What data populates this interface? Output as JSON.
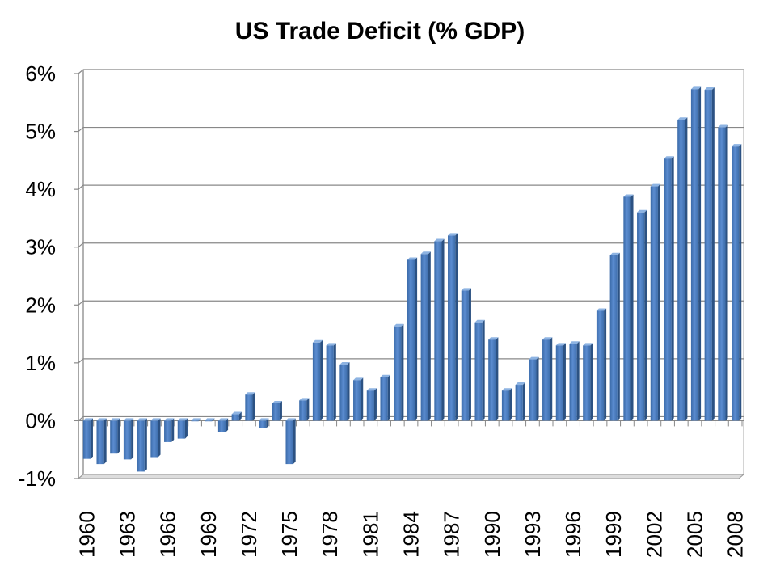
{
  "chart_data": {
    "type": "bar",
    "title": "US Trade Deficit (% GDP)",
    "xlabel": "",
    "ylabel": "",
    "ylim": [
      -1,
      6
    ],
    "yticks": [
      "-1%",
      "0%",
      "1%",
      "2%",
      "3%",
      "4%",
      "5%",
      "6%"
    ],
    "grid": true,
    "legend": "none",
    "bar_color": "#4F81BD",
    "categories": [
      "1960",
      "1961",
      "1962",
      "1963",
      "1964",
      "1965",
      "1966",
      "1967",
      "1968",
      "1969",
      "1970",
      "1971",
      "1972",
      "1973",
      "1974",
      "1975",
      "1976",
      "1977",
      "1978",
      "1979",
      "1980",
      "1981",
      "1982",
      "1983",
      "1984",
      "1985",
      "1986",
      "1987",
      "1988",
      "1989",
      "1990",
      "1991",
      "1992",
      "1993",
      "1994",
      "1995",
      "1996",
      "1997",
      "1998",
      "1999",
      "2000",
      "2001",
      "2002",
      "2003",
      "2004",
      "2005",
      "2006",
      "2007",
      "2008"
    ],
    "xtick_labels": [
      "1960",
      "1963",
      "1966",
      "1969",
      "1972",
      "1975",
      "1978",
      "1981",
      "1984",
      "1987",
      "1990",
      "1993",
      "1996",
      "1999",
      "2002",
      "2005",
      "2008"
    ],
    "values": [
      -0.66,
      -0.75,
      -0.57,
      -0.67,
      -0.88,
      -0.63,
      -0.37,
      -0.31,
      -0.01,
      -0.01,
      -0.2,
      0.11,
      0.45,
      -0.13,
      0.3,
      -0.75,
      0.35,
      1.35,
      1.3,
      0.97,
      0.7,
      0.52,
      0.75,
      1.63,
      2.78,
      2.88,
      3.1,
      3.2,
      2.25,
      1.7,
      1.4,
      0.52,
      0.62,
      1.06,
      1.4,
      1.3,
      1.33,
      1.3,
      1.9,
      2.86,
      3.87,
      3.6,
      4.05,
      4.53,
      5.2,
      5.73,
      5.72,
      5.07,
      4.74
    ]
  }
}
